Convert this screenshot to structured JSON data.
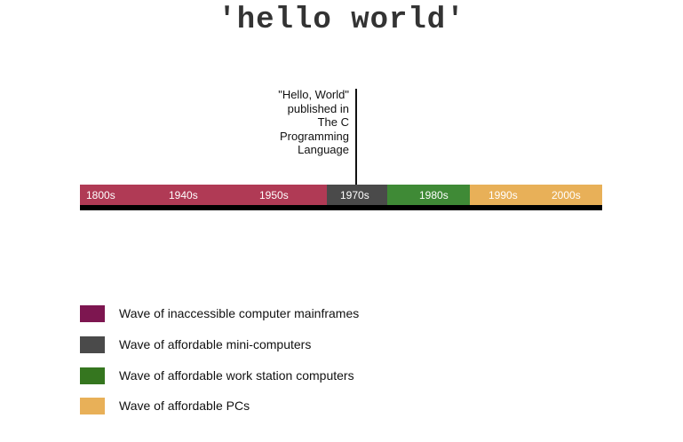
{
  "title": "'hello world'",
  "annotation": {
    "lines": [
      "\"Hello, World\"",
      "published in",
      "The C",
      "Programming",
      "Language"
    ],
    "decade": "1970s"
  },
  "timeline": {
    "decades": [
      "1800s",
      "1940s",
      "1950s",
      "1970s",
      "1980s",
      "1990s",
      "2000s"
    ],
    "segments": [
      {
        "wave": "mainframes",
        "from": "1800s",
        "to": "1950s",
        "color": "#b03a55"
      },
      {
        "wave": "mini-computers",
        "from": "1970s",
        "to": "1970s",
        "color": "#4a4a4a"
      },
      {
        "wave": "work-stations",
        "from": "1980s",
        "to": "1980s",
        "color": "#3f8a36"
      },
      {
        "wave": "pcs",
        "from": "1990s",
        "to": "2000s",
        "color": "#e8b058"
      }
    ]
  },
  "legend": [
    {
      "label": "Wave of inaccessible computer mainframes",
      "color": "#7d1650"
    },
    {
      "label": "Wave of affordable mini-computers",
      "color": "#4a4a4a"
    },
    {
      "label": "Wave of affordable work station computers",
      "color": "#35761f"
    },
    {
      "label": "Wave of affordable PCs",
      "color": "#e8b058"
    }
  ]
}
